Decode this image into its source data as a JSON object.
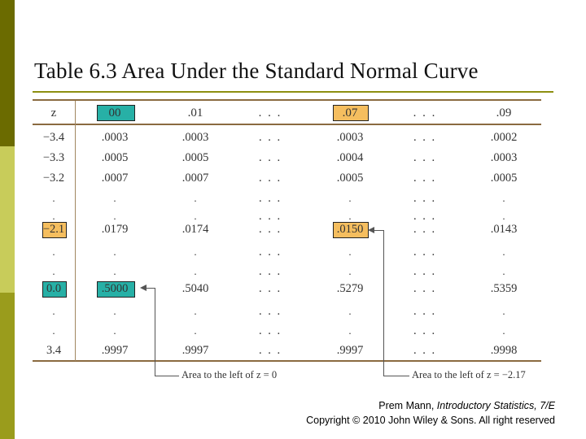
{
  "slide": {
    "title": "Table 6.3 Area Under the Standard Normal Curve"
  },
  "table": {
    "columns": [
      "z",
      "00",
      ".01",
      ". . .",
      ".07",
      ". . .",
      ".09"
    ],
    "rows": [
      [
        "−3.4",
        ".0003",
        ".0003",
        ". . .",
        ".0003",
        ". . .",
        ".0002"
      ],
      [
        "−3.3",
        ".0005",
        ".0005",
        ". . .",
        ".0004",
        ". . .",
        ".0003"
      ],
      [
        "−3.2",
        ".0007",
        ".0007",
        ". . .",
        ".0005",
        ". . .",
        ".0005"
      ],
      [
        ".",
        ".",
        ".",
        ". . .",
        ".",
        ". . .",
        "."
      ],
      [
        ".",
        ".",
        ".",
        ". . .",
        ".",
        ". . .",
        "."
      ],
      [
        "−2.1",
        ".0179",
        ".0174",
        ". . .",
        ".0150",
        ". . .",
        ".0143"
      ],
      [
        ".",
        ".",
        ".",
        ". . .",
        ".",
        ". . .",
        "."
      ],
      [
        ".",
        ".",
        ".",
        ". . .",
        ".",
        ". . .",
        "."
      ],
      [
        "0.0",
        ".5000",
        ".5040",
        ". . .",
        ".5279",
        ". . .",
        ".5359"
      ],
      [
        ".",
        ".",
        ".",
        ". . .",
        ".",
        ". . .",
        "."
      ],
      [
        ".",
        ".",
        ".",
        ". . .",
        ".",
        ". . .",
        "."
      ],
      [
        "3.4",
        ".9997",
        ".9997",
        ". . .",
        ".9997",
        ". . .",
        ".9998"
      ]
    ],
    "highlights": [
      {
        "row": -1,
        "col": 1,
        "color": "#27b0a6"
      },
      {
        "row": -1,
        "col": 4,
        "color": "#f5be5f"
      },
      {
        "row": 5,
        "col": 0,
        "color": "#f5be5f"
      },
      {
        "row": 5,
        "col": 4,
        "color": "#f5be5f"
      },
      {
        "row": 8,
        "col": 0,
        "color": "#27b0a6"
      },
      {
        "row": 8,
        "col": 1,
        "color": "#27b0a6"
      }
    ]
  },
  "callouts": {
    "left": "Area to the left of z = 0",
    "right": "Area to the left of z = −2.17"
  },
  "credit": {
    "line1_author": "Prem Mann, ",
    "line1_book": "Introductory Statistics, 7/E",
    "line2": "Copyright © 2010 John Wiley & Sons. All right reserved"
  },
  "colors": {
    "bar_dark": "#6b6b00",
    "bar_light": "#c8cc5a",
    "bar_mid": "#9a9c1c",
    "highlight_orange": "#f5be5f",
    "highlight_teal": "#27b0a6"
  }
}
